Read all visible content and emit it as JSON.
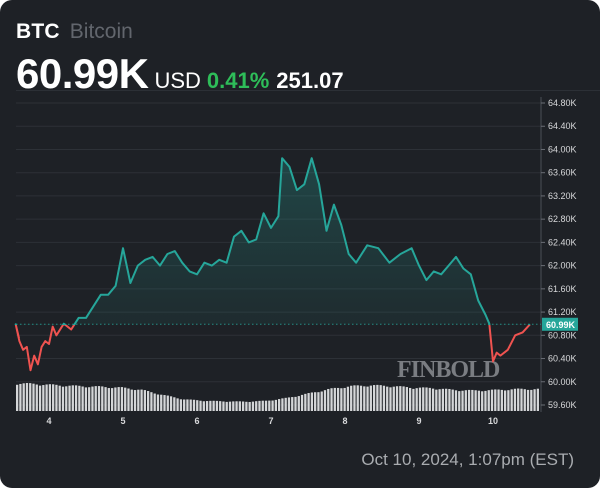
{
  "header": {
    "ticker": "BTC",
    "name": "Bitcoin",
    "price": "60.99K",
    "currency": "USD",
    "change_pct": "0.41%",
    "change_abs": "251.07"
  },
  "colors": {
    "background": "#1e2126",
    "up_line": "#26a69a",
    "down_line": "#ef5350",
    "positive_text": "#2ebd59",
    "volume_bar": "#d4d6d8",
    "last_price_badge": "#26a69a"
  },
  "watermark": "FINBOLD",
  "timestamp": "Oct 10, 2024, 1:07pm (EST)",
  "chart_data": {
    "type": "line",
    "title": "BTC Bitcoin",
    "xlabel": "",
    "ylabel": "",
    "x_tick_labels": [
      "4",
      "5",
      "6",
      "7",
      "8",
      "9",
      "10"
    ],
    "y_tick_labels": [
      "64.80K",
      "64.40K",
      "64.00K",
      "63.60K",
      "63.20K",
      "62.80K",
      "62.40K",
      "62.00K",
      "61.60K",
      "61.20K",
      "60.80K",
      "60.40K",
      "60.00K",
      "59.60K"
    ],
    "ylim": [
      59.6,
      64.8
    ],
    "grid": true,
    "legend": "none",
    "last_price": 60.99,
    "last_price_label": "60.99K",
    "baseline": 60.99,
    "series": [
      {
        "name": "BTC/USD (K)",
        "x": [
          3.5,
          3.55,
          3.6,
          3.65,
          3.7,
          3.75,
          3.8,
          3.85,
          3.9,
          3.95,
          4.0,
          4.05,
          4.1,
          4.2,
          4.3,
          4.4,
          4.5,
          4.6,
          4.7,
          4.8,
          4.9,
          5.0,
          5.1,
          5.2,
          5.3,
          5.4,
          5.5,
          5.6,
          5.7,
          5.8,
          5.9,
          6.0,
          6.1,
          6.2,
          6.3,
          6.4,
          6.5,
          6.6,
          6.7,
          6.8,
          6.9,
          7.0,
          7.1,
          7.15,
          7.25,
          7.35,
          7.45,
          7.55,
          7.65,
          7.75,
          7.85,
          7.95,
          8.05,
          8.15,
          8.3,
          8.45,
          8.6,
          8.75,
          8.9,
          9.0,
          9.1,
          9.2,
          9.3,
          9.4,
          9.5,
          9.6,
          9.7,
          9.8,
          9.9,
          9.95,
          10.0,
          10.05,
          10.1,
          10.2,
          10.3,
          10.4,
          10.5,
          10.6
        ],
        "values": [
          60.75,
          60.99,
          60.7,
          60.55,
          60.6,
          60.2,
          60.45,
          60.3,
          60.6,
          60.7,
          60.65,
          60.95,
          60.8,
          61.0,
          60.9,
          61.1,
          61.1,
          61.3,
          61.5,
          61.5,
          61.65,
          62.3,
          61.7,
          62.0,
          62.1,
          62.15,
          62.0,
          62.2,
          62.25,
          62.05,
          61.9,
          61.85,
          62.05,
          62.0,
          62.1,
          62.05,
          62.5,
          62.6,
          62.4,
          62.45,
          62.9,
          62.65,
          62.85,
          63.85,
          63.7,
          63.3,
          63.4,
          63.85,
          63.4,
          62.6,
          63.05,
          62.7,
          62.2,
          62.05,
          62.35,
          62.3,
          62.05,
          62.2,
          62.3,
          62.0,
          61.75,
          61.9,
          61.85,
          62.0,
          62.15,
          61.95,
          61.85,
          61.4,
          61.15,
          61.0,
          60.35,
          60.5,
          60.45,
          60.55,
          60.8,
          60.85,
          60.99,
          60.99
        ]
      }
    ],
    "volume": {
      "description": "Volume bars under price line, relative heights (0-1)",
      "values_trend": [
        0.95,
        0.92,
        0.88,
        0.85,
        0.83,
        0.8,
        0.72,
        0.55,
        0.4,
        0.35,
        0.33,
        0.32,
        0.35,
        0.45,
        0.6,
        0.75,
        0.85,
        0.88,
        0.85,
        0.8,
        0.78,
        0.72,
        0.7,
        0.72,
        0.75,
        0.75
      ]
    }
  }
}
